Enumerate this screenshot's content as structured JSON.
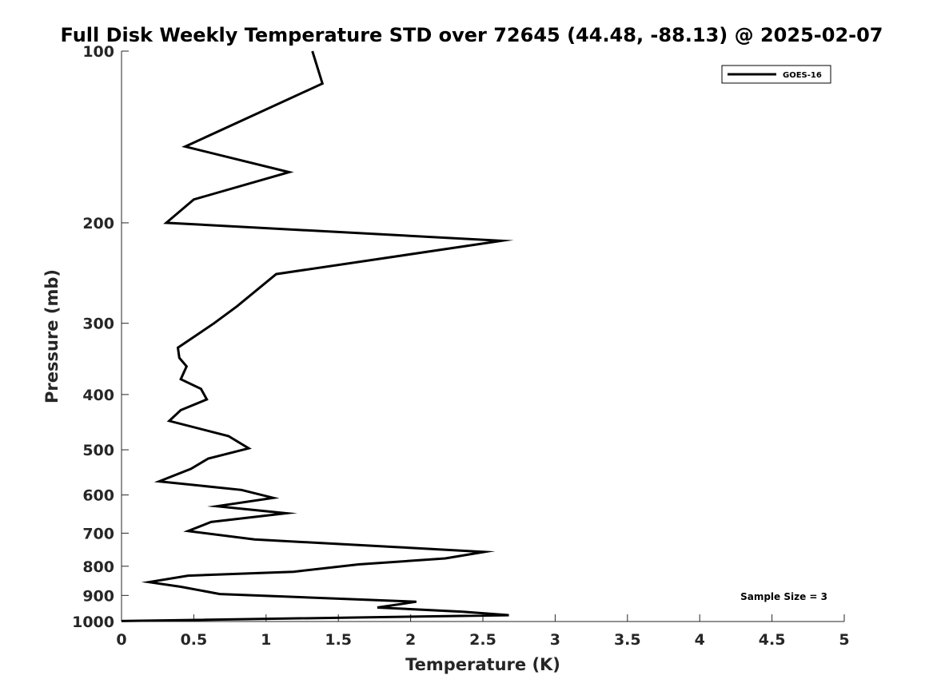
{
  "chart_data": {
    "type": "line",
    "title": "Full Disk Weekly Temperature STD over 72645 (44.48, -88.13) @ 2025-02-07",
    "xlabel": "Temperature (K)",
    "ylabel": "Pressure (mb)",
    "xlim": [
      0,
      5
    ],
    "ylim": [
      100,
      1000
    ],
    "yscale": "log",
    "x_ticks": [
      0,
      0.5,
      1,
      1.5,
      2,
      2.5,
      3,
      3.5,
      4,
      4.5,
      5
    ],
    "x_tick_labels": [
      "0",
      "0.5",
      "1",
      "1.5",
      "2",
      "2.5",
      "3",
      "3.5",
      "4",
      "4.5",
      "5"
    ],
    "y_ticks": [
      100,
      200,
      300,
      400,
      500,
      600,
      700,
      800,
      900,
      1000
    ],
    "y_tick_labels": [
      "100",
      "200",
      "300",
      "400",
      "500",
      "600",
      "700",
      "800",
      "900",
      "1000"
    ],
    "legend_position": "top-right",
    "grid": false,
    "annotation": "Sample Size = 3",
    "series": [
      {
        "name": "GOES-16",
        "color": "#000000",
        "x": [
          1.32,
          1.39,
          0.44,
          1.16,
          0.5,
          0.31,
          2.63,
          1.07,
          0.8,
          0.64,
          0.39,
          0.4,
          0.45,
          0.41,
          0.55,
          0.59,
          0.41,
          0.33,
          0.74,
          0.88,
          0.6,
          0.48,
          0.26,
          0.83,
          1.05,
          0.66,
          1.14,
          0.62,
          0.46,
          0.92,
          1.88,
          2.51,
          2.24,
          1.64,
          1.19,
          0.46,
          0.19,
          0.41,
          0.68,
          2.04,
          1.77,
          2.36,
          2.68,
          0.0
        ],
        "y": [
          100,
          114,
          147,
          163,
          182,
          200,
          215,
          246,
          280,
          300,
          331,
          345,
          357,
          376,
          391,
          408,
          426,
          445,
          473,
          497,
          518,
          540,
          568,
          588,
          607,
          628,
          646,
          669,
          694,
          718,
          740,
          755,
          775,
          794,
          818,
          831,
          853,
          869,
          895,
          923,
          945,
          961,
          975,
          998
        ]
      }
    ]
  }
}
